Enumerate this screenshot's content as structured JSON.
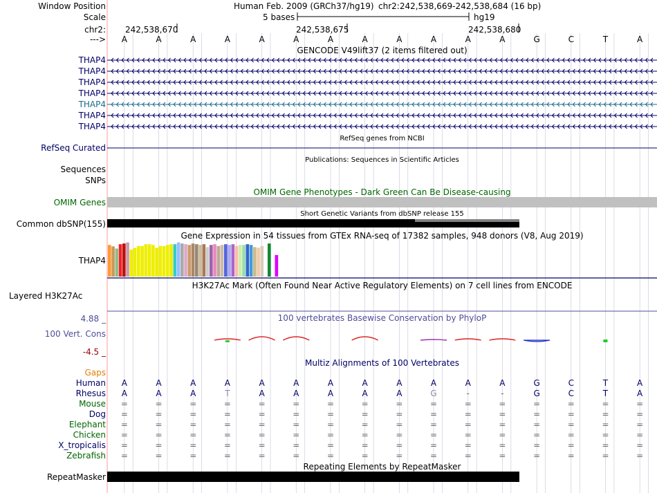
{
  "header": {
    "window_position_label": "Window Position",
    "assembly": "Human Feb. 2009 (GRCh37/hg19)",
    "position": "chr2:242,538,669-242,538,684 (16 bp)",
    "scale_label": "Scale",
    "scale_bases": "5 bases",
    "scale_db": "hg19",
    "chrom_label": "chr2:",
    "ruler_ticks": [
      "242,538,670",
      "242,538,675",
      "242,538,680"
    ],
    "strand_label": "--->"
  },
  "sequence": [
    "A",
    "A",
    "A",
    "A",
    "A",
    "A",
    "A",
    "A",
    "A",
    "A",
    "A",
    "A",
    "G",
    "C",
    "T",
    "A"
  ],
  "gencode": {
    "title": "GENCODE V49lift37 (2 items filtered out)",
    "rows": [
      {
        "label": "THAP4",
        "color": "#000066"
      },
      {
        "label": "THAP4",
        "color": "#000066"
      },
      {
        "label": "THAP4",
        "color": "#000066"
      },
      {
        "label": "THAP4",
        "color": "#000066"
      },
      {
        "label": "THAP4",
        "color": "#1a6b8a"
      },
      {
        "label": "THAP4",
        "color": "#000066"
      },
      {
        "label": "THAP4",
        "color": "#000066"
      }
    ]
  },
  "refseq": {
    "title": "RefSeq genes from NCBI",
    "label": "RefSeq Curated"
  },
  "publications": {
    "title": "Publications: Sequences in Scientific Articles",
    "label": "Sequences"
  },
  "snps": {
    "label": "SNPs"
  },
  "omim": {
    "title": "OMIM Gene Phenotypes - Dark Green Can Be Disease-causing",
    "label": "OMIM Genes"
  },
  "dbsnp": {
    "title": "Short Genetic Variants from dbSNP release 155",
    "label": "Common dbSNP(155)"
  },
  "gtex": {
    "title": "Gene Expression in 54 tissues from GTEx RNA-seq of 17382 samples, 948 donors (V8, Aug 2019)",
    "label": "THAP4",
    "bars": [
      {
        "color": "#ff9933",
        "value": 0.88
      },
      {
        "color": "#cc9955",
        "value": 0.84
      },
      {
        "color": "#8fbc8f",
        "value": 0.78
      },
      {
        "color": "#ee2222",
        "value": 0.9
      },
      {
        "color": "#bb1111",
        "value": 0.92
      },
      {
        "color": "#cc99aa",
        "value": 0.95
      },
      {
        "color": "#eeee00",
        "value": 0.75
      },
      {
        "color": "#eeee00",
        "value": 0.8
      },
      {
        "color": "#eeee00",
        "value": 0.85
      },
      {
        "color": "#eeee00",
        "value": 0.85
      },
      {
        "color": "#eeee00",
        "value": 0.9
      },
      {
        "color": "#eeee00",
        "value": 0.9
      },
      {
        "color": "#eeee00",
        "value": 0.88
      },
      {
        "color": "#eeee00",
        "value": 0.8
      },
      {
        "color": "#eeee00",
        "value": 0.85
      },
      {
        "color": "#eeee00",
        "value": 0.85
      },
      {
        "color": "#eeee00",
        "value": 0.88
      },
      {
        "color": "#eeee00",
        "value": 0.9
      },
      {
        "color": "#33cccc",
        "value": 0.9
      },
      {
        "color": "#99bbff",
        "value": 0.95
      },
      {
        "color": "#aaaaaa",
        "value": 0.92
      },
      {
        "color": "#ddaacc",
        "value": 0.9
      },
      {
        "color": "#cc9966",
        "value": 0.88
      },
      {
        "color": "#aa8866",
        "value": 0.92
      },
      {
        "color": "#998877",
        "value": 0.9
      },
      {
        "color": "#ccbb99",
        "value": 0.88
      },
      {
        "color": "#aa7755",
        "value": 0.9
      },
      {
        "color": "#cccccc",
        "value": 0.82
      },
      {
        "color": "#9966aa",
        "value": 0.88
      },
      {
        "color": "#ee88bb",
        "value": 0.9
      },
      {
        "color": "#bbaa99",
        "value": 0.85
      },
      {
        "color": "#ccbbaa",
        "value": 0.88
      },
      {
        "color": "#5566dd",
        "value": 0.9
      },
      {
        "color": "#aaaaee",
        "value": 0.88
      },
      {
        "color": "#aa66cc",
        "value": 0.9
      },
      {
        "color": "#ffbbaa",
        "value": 0.85
      },
      {
        "color": "#cceeaa",
        "value": 0.88
      },
      {
        "color": "#99ddaa",
        "value": 0.88
      },
      {
        "color": "#3366cc",
        "value": 0.9
      },
      {
        "color": "#4499dd",
        "value": 0.88
      },
      {
        "color": "#ccbb88",
        "value": 0.82
      },
      {
        "color": "#eeccaa",
        "value": 0.8
      },
      {
        "color": "#ddccbb",
        "value": 0.85
      },
      {
        "color": "#ffffff",
        "value": 0.5
      },
      {
        "color": "#118833",
        "value": 0.92
      },
      {
        "color": "#ffffff",
        "value": 0.5
      },
      {
        "color": "#dd00ff",
        "value": 0.6
      }
    ]
  },
  "h3k27ac": {
    "title": "H3K27Ac Mark (Often Found Near Active Regulatory Elements) on 7 cell lines from ENCODE",
    "label": "Layered H3K27Ac"
  },
  "conservation": {
    "title": "100 vertebrates Basewise Conservation by PhyloP",
    "label": "100 Vert. Cons",
    "ymax": "4.88 _",
    "ymin": "-4.5 _"
  },
  "multiz": {
    "title": "Multiz Alignments of 100 Vertebrates",
    "gaps_label": "Gaps",
    "species": [
      {
        "name": "Human",
        "color": "#000066",
        "bases": [
          "A",
          "A",
          "A",
          "A",
          "A",
          "A",
          "A",
          "A",
          "A",
          "A",
          "A",
          "A",
          "G",
          "C",
          "T",
          "A"
        ]
      },
      {
        "name": "Rhesus",
        "color": "#000066",
        "bases": [
          "A",
          "A",
          "A",
          "T",
          "A",
          "A",
          "A",
          "A",
          "A",
          "G",
          "-",
          "-",
          "G",
          "C",
          "T",
          "A"
        ]
      },
      {
        "name": "Mouse",
        "color": "#006600",
        "bases": [
          "=",
          "=",
          "=",
          "=",
          "=",
          "=",
          "=",
          "=",
          "=",
          "=",
          "=",
          "=",
          "=",
          "=",
          "=",
          "="
        ]
      },
      {
        "name": "Dog",
        "color": "#000066",
        "bases": [
          "=",
          "=",
          "=",
          "=",
          "=",
          "=",
          "=",
          "=",
          "=",
          "=",
          "=",
          "=",
          "=",
          "=",
          "=",
          "="
        ]
      },
      {
        "name": "Elephant",
        "color": "#006600",
        "bases": [
          "=",
          "=",
          "=",
          "=",
          "=",
          "=",
          "=",
          "=",
          "=",
          "=",
          "=",
          "=",
          "=",
          "=",
          "=",
          "="
        ]
      },
      {
        "name": "Chicken",
        "color": "#006600",
        "bases": [
          "=",
          "=",
          "=",
          "=",
          "=",
          "=",
          "=",
          "=",
          "=",
          "=",
          "=",
          "=",
          "=",
          "=",
          "=",
          "="
        ]
      },
      {
        "name": "X_tropicalis",
        "color": "#000066",
        "bases": [
          "=",
          "=",
          "=",
          "=",
          "=",
          "=",
          "=",
          "=",
          "=",
          "=",
          "=",
          "=",
          "=",
          "=",
          "=",
          "="
        ]
      },
      {
        "name": "Zebrafish",
        "color": "#006600",
        "bases": [
          "=",
          "=",
          "=",
          "=",
          "=",
          "=",
          "=",
          "=",
          "=",
          "=",
          "=",
          "=",
          "=",
          "=",
          "=",
          "="
        ]
      }
    ]
  },
  "repeatmasker": {
    "title": "Repeating Elements by RepeatMasker",
    "label": "RepeatMasker"
  },
  "colors": {
    "omim_bar": "#c0c0c0",
    "snp_bar": "#000000",
    "grid": "#ccccdd",
    "divider": "#ff9999",
    "phylop": "#dd2222"
  }
}
